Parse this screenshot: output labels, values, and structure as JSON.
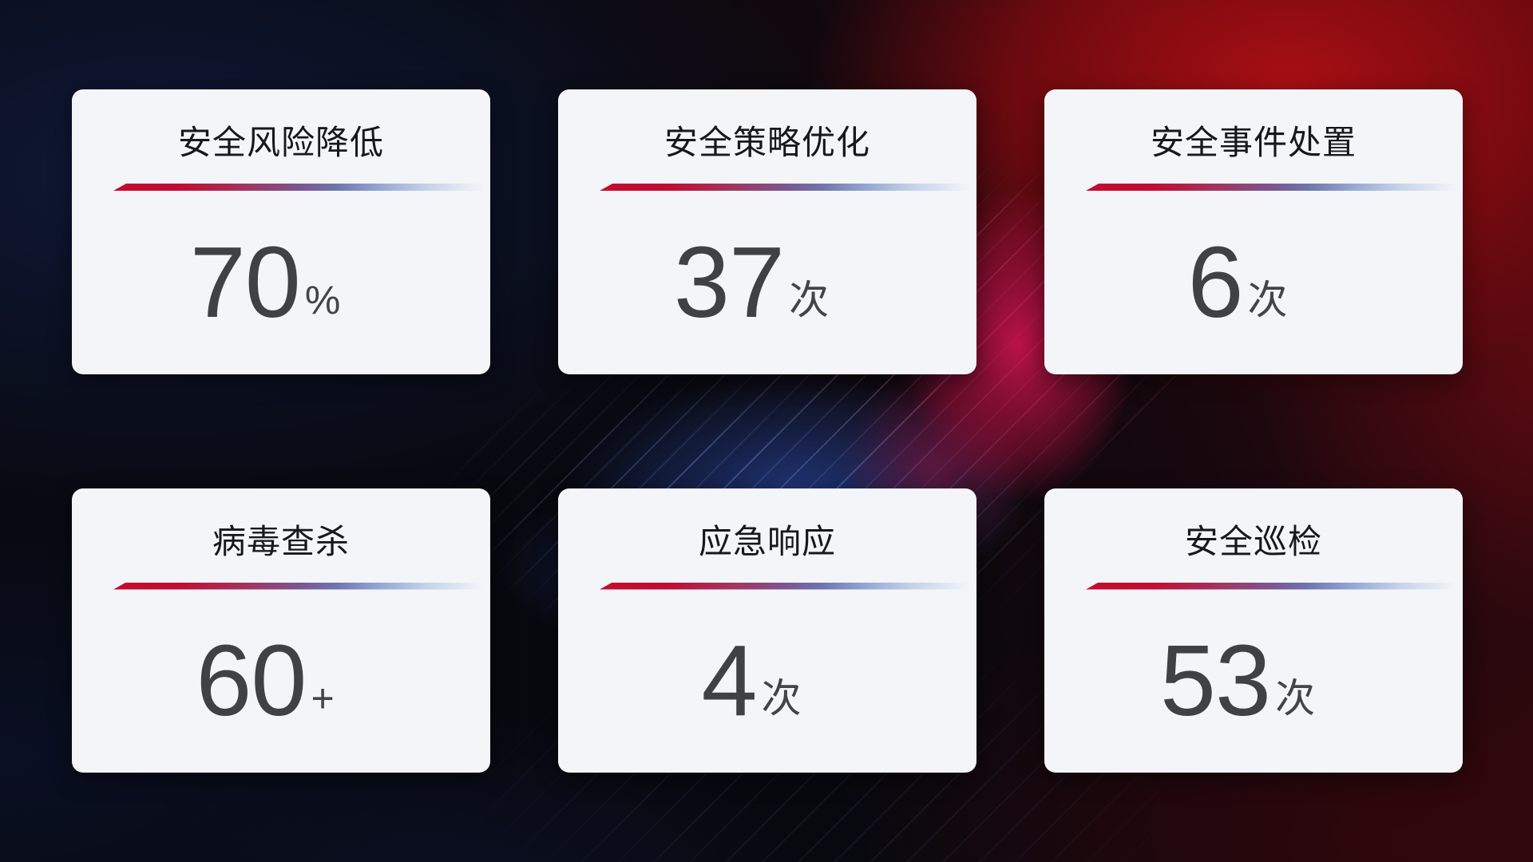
{
  "cards": [
    {
      "title": "安全风险降低",
      "value": "70",
      "unit": "%"
    },
    {
      "title": "安全策略优化",
      "value": "37",
      "unit": "次"
    },
    {
      "title": "安全事件处置",
      "value": "6",
      "unit": "次"
    },
    {
      "title": "病毒查杀",
      "value": "60",
      "unit": "+"
    },
    {
      "title": "应急响应",
      "value": "4",
      "unit": "次"
    },
    {
      "title": "安全巡检",
      "value": "53",
      "unit": "次"
    }
  ],
  "colors": {
    "card_background": "#f4f5f8",
    "title_text": "#17181a",
    "value_text": "#404144",
    "divider_red": "#c60b2e",
    "divider_purple": "#7b5590",
    "divider_blue": "#93a8d3",
    "background_base": "#08090f",
    "background_navy": "#0f1938",
    "background_red": "#ac0f14",
    "background_magenta": "#cc134e",
    "background_blue_glow": "#21367a"
  }
}
